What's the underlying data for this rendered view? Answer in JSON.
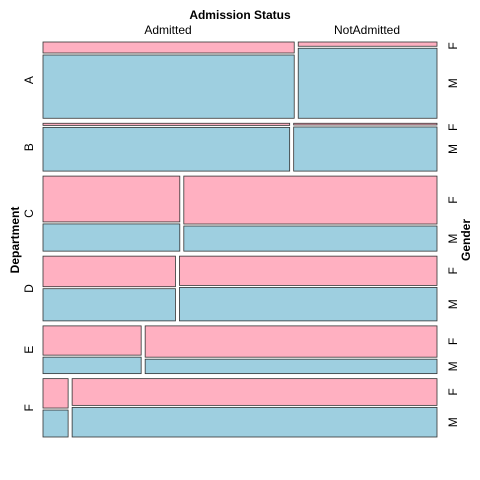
{
  "chart_data": {
    "type": "mosaic",
    "title": "Admission Status",
    "column_labels": [
      "Admitted",
      "NotAdmitted"
    ],
    "ylabel": "Department",
    "right_label": "Gender",
    "departments": [
      {
        "name": "A",
        "admitted": {
          "F": 89,
          "M": 512
        },
        "not_admitted": {
          "F": 19,
          "M": 313
        }
      },
      {
        "name": "B",
        "admitted": {
          "F": 17,
          "M": 353
        },
        "not_admitted": {
          "F": 8,
          "M": 207
        }
      },
      {
        "name": "C",
        "admitted": {
          "F": 202,
          "M": 120
        },
        "not_admitted": {
          "F": 391,
          "M": 205
        }
      },
      {
        "name": "D",
        "admitted": {
          "F": 131,
          "M": 138
        },
        "not_admitted": {
          "F": 244,
          "M": 279
        }
      },
      {
        "name": "E",
        "admitted": {
          "F": 94,
          "M": 53
        },
        "not_admitted": {
          "F": 299,
          "M": 138
        }
      },
      {
        "name": "F",
        "admitted": {
          "F": 24,
          "M": 22
        },
        "not_admitted": {
          "F": 317,
          "M": 351
        }
      }
    ],
    "gender_labels": [
      "F",
      "M"
    ],
    "colors": {
      "F": "#ffb0c1",
      "M": "#9ecfe0"
    }
  }
}
